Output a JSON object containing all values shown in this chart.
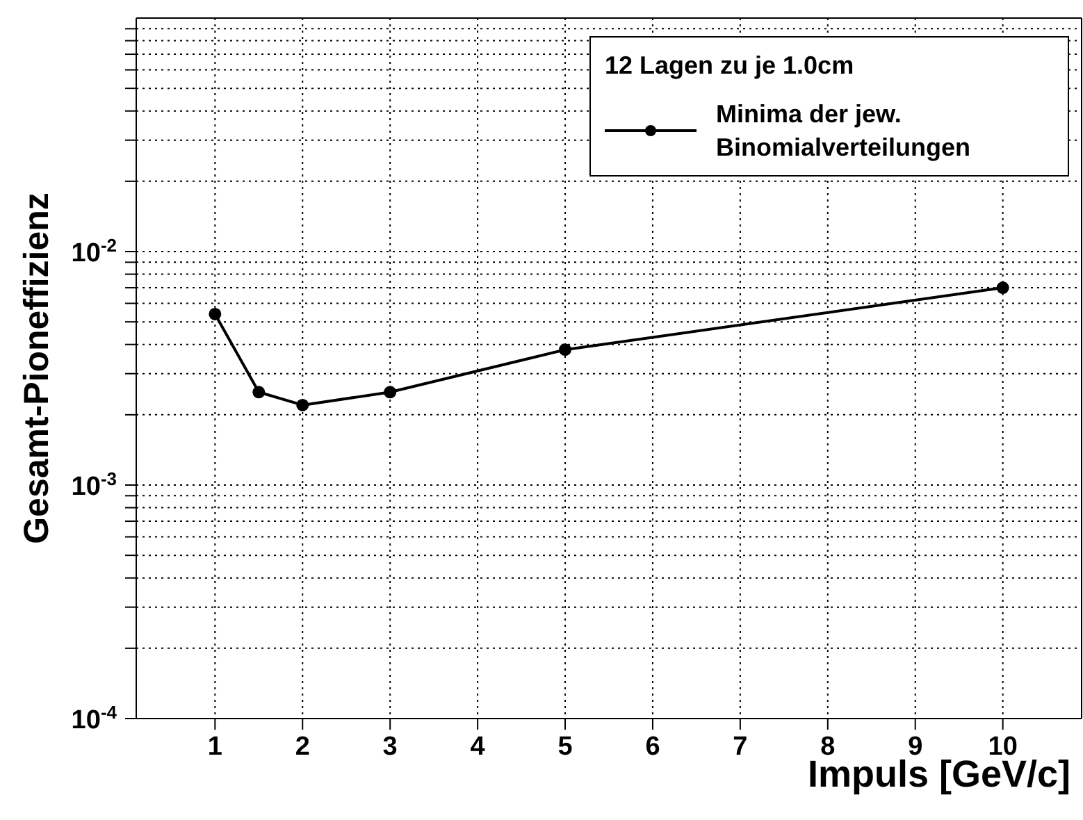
{
  "chart_data": {
    "type": "line",
    "xlabel": "Impuls [GeV/c]",
    "ylabel": "Gesamt-Pioneffizienz",
    "legend_title": "12 Lagen zu je 1.0cm",
    "log": "y",
    "grid": true,
    "legend": "top right",
    "marker": "circle",
    "line_style": "solid",
    "x": [
      1,
      1.5,
      2,
      3,
      5,
      10
    ],
    "series": [
      {
        "name": "Minima der jew. Binomialverteilungen",
        "color": "#000000",
        "values": [
          0.0054,
          0.0025,
          0.0022,
          0.0025,
          0.0038,
          0.007
        ]
      }
    ],
    "xlim": [
      0.1,
      10.9
    ],
    "xticks": [
      1,
      2,
      3,
      4,
      5,
      6,
      7,
      8,
      9,
      10
    ],
    "ylim": [
      0.0001,
      0.1
    ],
    "yticks": [
      {
        "value": 0.0001,
        "label": "10$^{-4}$"
      },
      {
        "value": 0.0002,
        "label": null
      },
      {
        "value": 0.0003,
        "label": null
      },
      {
        "value": 0.0004,
        "label": null
      },
      {
        "value": 0.0005,
        "label": null
      },
      {
        "value": 0.0006,
        "label": null
      },
      {
        "value": 0.0007,
        "label": null
      },
      {
        "value": 0.0008,
        "label": null
      },
      {
        "value": 0.0009,
        "label": null
      },
      {
        "value": 0.001,
        "label": "10$^{-3}$"
      },
      {
        "value": 0.002,
        "label": null
      },
      {
        "value": 0.003,
        "label": null
      },
      {
        "value": 0.004,
        "label": null
      },
      {
        "value": 0.005,
        "label": null
      },
      {
        "value": 0.006,
        "label": null
      },
      {
        "value": 0.007,
        "label": null
      },
      {
        "value": 0.008,
        "label": null
      },
      {
        "value": 0.009,
        "label": null
      },
      {
        "value": 0.01,
        "label": "10$^{-2}$"
      },
      {
        "value": 0.02,
        "label": null
      },
      {
        "value": 0.03,
        "label": null
      },
      {
        "value": 0.04,
        "label": null
      },
      {
        "value": 0.05,
        "label": null
      },
      {
        "value": 0.06,
        "label": null
      },
      {
        "value": 0.07,
        "label": null
      },
      {
        "value": 0.08,
        "label": null
      },
      {
        "value": 0.09,
        "label": null
      }
    ]
  }
}
